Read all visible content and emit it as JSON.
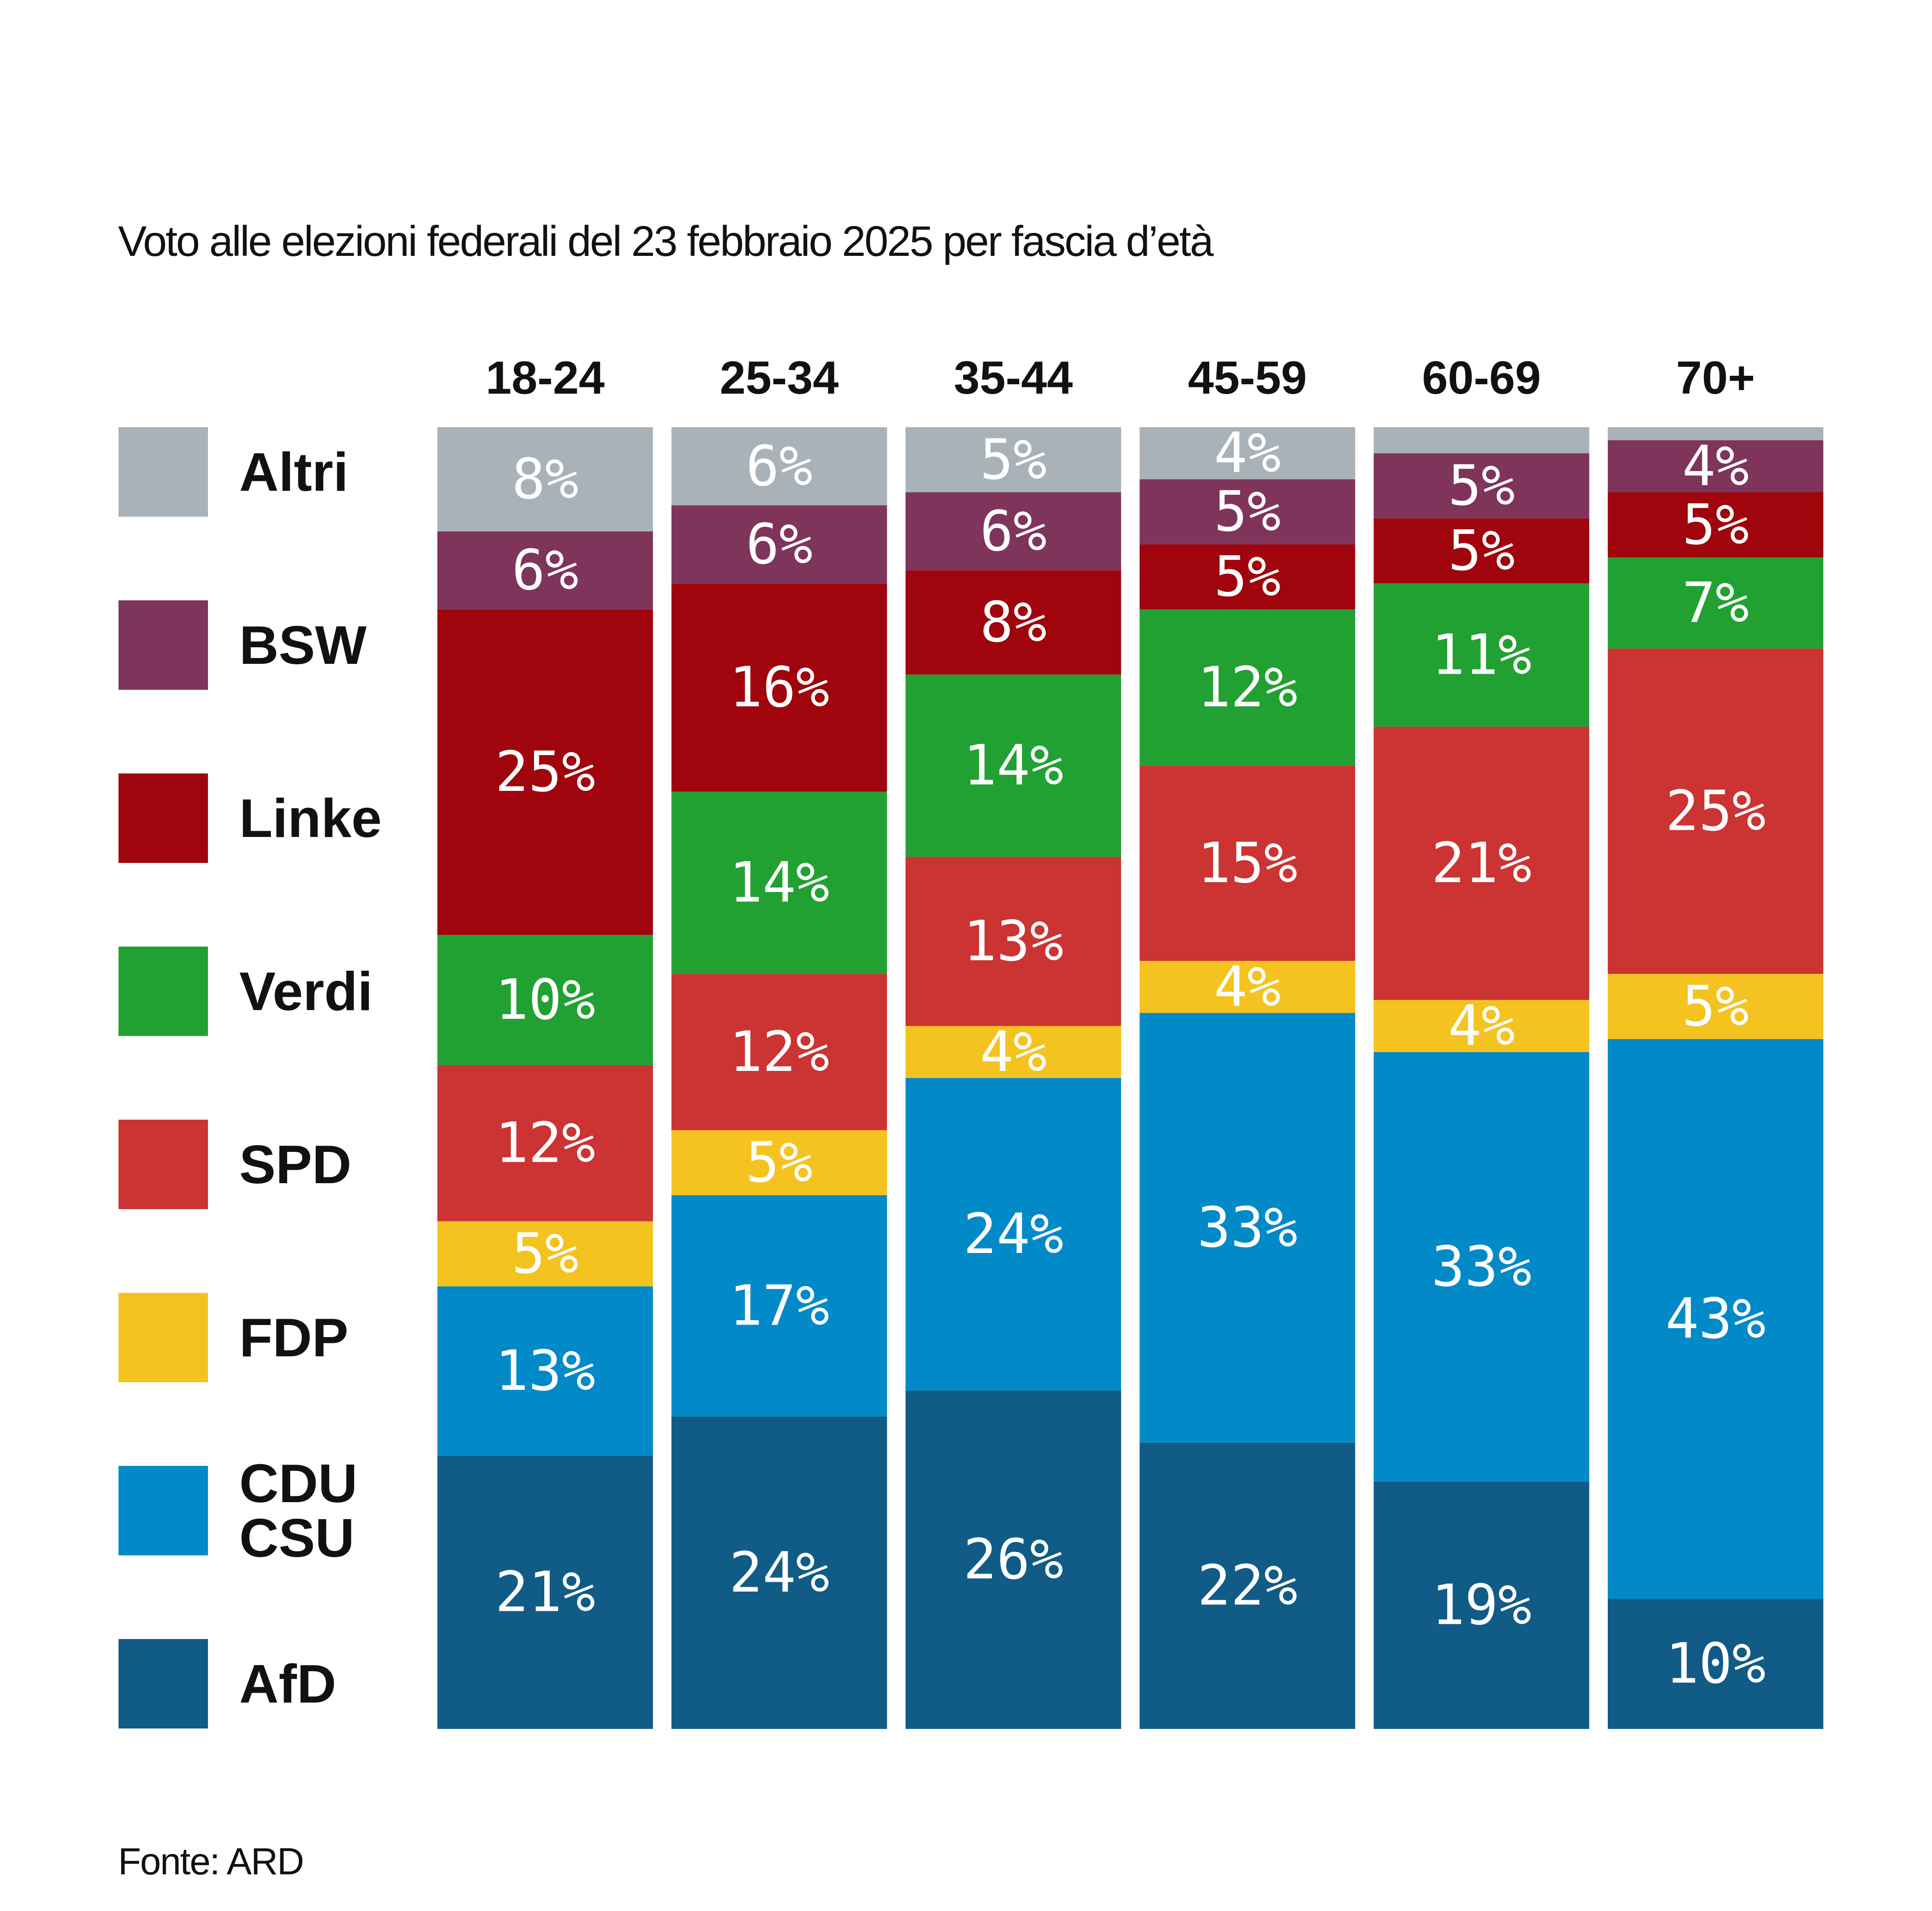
{
  "chart_data": {
    "type": "bar",
    "stacked": true,
    "title": "Voto alle elezioni federali del 23 febbraio 2025 per fascia d’età",
    "source": "Fonte: ARD",
    "categories": [
      "18-24",
      "25-34",
      "35-44",
      "45-59",
      "60-69",
      "70+"
    ],
    "series": [
      {
        "key": "afd",
        "name": "AfD",
        "color": "#115b87",
        "values": [
          21,
          24,
          26,
          22,
          19,
          10
        ],
        "labels": [
          "21%",
          "24%",
          "26%",
          "22%",
          "19%",
          "10%"
        ]
      },
      {
        "key": "cdu",
        "name": "CDU CSU",
        "name_lines": [
          "CDU",
          "CSU"
        ],
        "color": "#028ac8",
        "values": [
          13,
          17,
          24,
          33,
          33,
          43
        ],
        "labels": [
          "13%",
          "17%",
          "24%",
          "33%",
          "33%",
          "43%"
        ]
      },
      {
        "key": "fdp",
        "name": "FDP",
        "color": "#f4c31f",
        "values": [
          5,
          5,
          4,
          4,
          4,
          5
        ],
        "labels": [
          "5%",
          "5%",
          "4%",
          "4%",
          "4%",
          "5%"
        ]
      },
      {
        "key": "spd",
        "name": "SPD",
        "color": "#cc3333",
        "values": [
          12,
          12,
          13,
          15,
          21,
          25
        ],
        "labels": [
          "12%",
          "12%",
          "13%",
          "15%",
          "21%",
          "25%"
        ]
      },
      {
        "key": "verdi",
        "name": "Verdi",
        "color": "#22a133",
        "values": [
          10,
          14,
          14,
          12,
          11,
          7
        ],
        "labels": [
          "10%",
          "14%",
          "14%",
          "12%",
          "11%",
          "7%"
        ]
      },
      {
        "key": "linke",
        "name": "Linke",
        "color": "#a0040c",
        "values": [
          25,
          16,
          8,
          5,
          5,
          5
        ],
        "labels": [
          "25%",
          "16%",
          "8%",
          "5%",
          "5%",
          "5%"
        ]
      },
      {
        "key": "bsw",
        "name": "BSW",
        "color": "#7f345c",
        "values": [
          6,
          6,
          6,
          5,
          5,
          4
        ],
        "labels": [
          "6%",
          "6%",
          "6%",
          "5%",
          "5%",
          "4%"
        ]
      },
      {
        "key": "altri",
        "name": "Altri",
        "color": "#a9b2b8",
        "values": [
          8,
          6,
          5,
          4,
          2,
          1
        ],
        "labels": [
          "8%",
          "6%",
          "5%",
          "4%",
          "",
          ""
        ]
      }
    ],
    "ylim": [
      0,
      100
    ],
    "xlabel": "",
    "ylabel": "",
    "legend": "left",
    "legend_order": [
      "altri",
      "bsw",
      "linke",
      "verdi",
      "spd",
      "fdp",
      "cdu",
      "afd"
    ]
  }
}
